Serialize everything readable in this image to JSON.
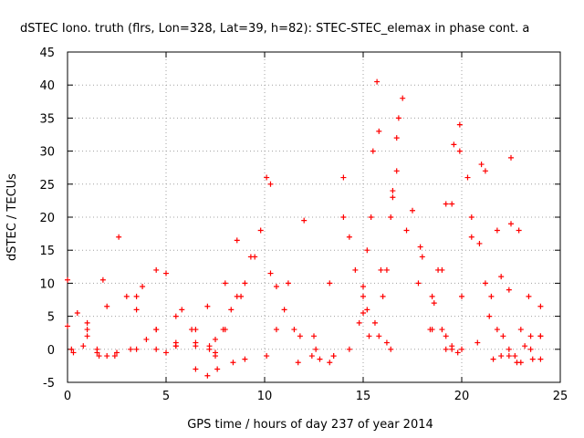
{
  "chart_data": {
    "type": "scatter",
    "title": "dSTEC Iono. truth (flrs, Lon=328, Lat=39, h=82): STEC-STEC_elemax in phase cont. a",
    "xlabel": "GPS time / hours of day 237 of year 2014",
    "ylabel": "dSTEC  / TECUs",
    "xlim": [
      0,
      25
    ],
    "ylim": [
      -5,
      45
    ],
    "xticks": [
      "0",
      "5",
      "10",
      "15",
      "20",
      "25"
    ],
    "yticks": [
      "-5",
      "0",
      "5",
      "10",
      "15",
      "20",
      "25",
      "30",
      "35",
      "40",
      "45"
    ],
    "grid": true,
    "marker": "+",
    "color": "#ff0000",
    "series": [
      {
        "x": [
          0.0,
          0.5,
          1.0,
          1.5,
          2.0
        ],
        "y": [
          10.5,
          5.5,
          2.0,
          0.0,
          -1.0
        ]
      },
      {
        "x": [
          0.0,
          0.8,
          1.6,
          2.4,
          3.2,
          4.0
        ],
        "y": [
          3.5,
          0.5,
          -1.0,
          -1.0,
          0.0,
          1.5
        ]
      },
      {
        "x": [
          0.2,
          1.0,
          2.0,
          3.0,
          3.8
        ],
        "y": [
          0.0,
          3.0,
          6.5,
          8.0,
          9.5
        ]
      },
      {
        "x": [
          0.3,
          1.0,
          1.8
        ],
        "y": [
          -0.5,
          4.0,
          10.5
        ]
      },
      {
        "x": [
          2.6,
          3.5,
          4.5,
          5.5
        ],
        "y": [
          17.0,
          8.0,
          3.0,
          0.5
        ]
      },
      {
        "x": [
          1.5,
          2.5,
          3.5,
          4.5,
          5.0
        ],
        "y": [
          -0.5,
          -0.5,
          0.0,
          0.0,
          -0.5
        ]
      },
      {
        "x": [
          4.5,
          5.5,
          6.5,
          7.5
        ],
        "y": [
          12.0,
          5.0,
          1.0,
          -0.5
        ]
      },
      {
        "x": [
          3.5,
          4.5,
          5.5,
          6.5,
          7.5
        ],
        "y": [
          6.0,
          3.0,
          1.0,
          0.5,
          -1.0
        ]
      },
      {
        "x": [
          5.0,
          5.8,
          6.5,
          7.2
        ],
        "y": [
          11.5,
          6.0,
          3.0,
          0.5
        ]
      },
      {
        "x": [
          5.5,
          6.3,
          7.1,
          8.0,
          8.6
        ],
        "y": [
          0.5,
          3.0,
          6.5,
          10.0,
          16.5
        ]
      },
      {
        "x": [
          6.5,
          7.1,
          7.6,
          8.4,
          9.0
        ],
        "y": [
          -3.0,
          -4.0,
          -3.0,
          -2.0,
          -1.5
        ]
      },
      {
        "x": [
          7.2,
          7.9,
          8.6,
          9.3,
          10.1
        ],
        "y": [
          0.0,
          3.0,
          8.0,
          14.0,
          26.0
        ]
      },
      {
        "x": [
          7.5,
          8.3,
          9.0,
          9.8
        ],
        "y": [
          1.5,
          6.0,
          10.0,
          18.0
        ]
      },
      {
        "x": [
          8.0,
          8.8,
          9.5,
          10.3
        ],
        "y": [
          3.0,
          8.0,
          14.0,
          25.0
        ]
      },
      {
        "x": [
          10.1,
          10.6,
          11.2,
          12.0
        ],
        "y": [
          -1.0,
          3.0,
          10.0,
          19.5
        ]
      },
      {
        "x": [
          10.3,
          11.0,
          11.8,
          12.6,
          13.5
        ],
        "y": [
          11.5,
          6.0,
          2.0,
          0.0,
          -1.0
        ]
      },
      {
        "x": [
          10.6,
          11.5,
          12.4,
          13.3
        ],
        "y": [
          9.5,
          3.0,
          -1.0,
          -2.0
        ]
      },
      {
        "x": [
          11.7,
          12.5,
          13.3,
          14.0
        ],
        "y": [
          -2.0,
          2.0,
          10.0,
          26.0
        ]
      },
      {
        "x": [
          12.8,
          13.5,
          14.3,
          15.0
        ],
        "y": [
          -1.5,
          -1.0,
          0.0,
          5.5
        ]
      },
      {
        "x": [
          14.0,
          14.6,
          15.2,
          15.8,
          16.4
        ],
        "y": [
          20.0,
          12.0,
          6.0,
          2.0,
          0.0
        ]
      },
      {
        "x": [
          14.3,
          15.0,
          15.6,
          16.2
        ],
        "y": [
          17.0,
          9.5,
          4.0,
          1.0
        ]
      },
      {
        "x": [
          14.8,
          15.2,
          15.5,
          15.7
        ],
        "y": [
          4.0,
          15.0,
          30.0,
          40.5
        ]
      },
      {
        "x": [
          15.0,
          15.4,
          15.8
        ],
        "y": [
          8.0,
          20.0,
          33.0
        ]
      },
      {
        "x": [
          15.3,
          15.9,
          16.5
        ],
        "y": [
          2.0,
          12.0,
          23.0
        ]
      },
      {
        "x": [
          16.0,
          16.4,
          16.7,
          17.0
        ],
        "y": [
          8.0,
          20.0,
          32.0,
          38.0
        ]
      },
      {
        "x": [
          16.2,
          16.5,
          16.8
        ],
        "y": [
          12.0,
          24.0,
          35.0
        ]
      },
      {
        "x": [
          16.7,
          17.2,
          17.8,
          18.5,
          19.2
        ],
        "y": [
          27.0,
          18.0,
          10.0,
          3.0,
          0.0
        ]
      },
      {
        "x": [
          17.5,
          18.0,
          18.6,
          19.2,
          19.8
        ],
        "y": [
          21.0,
          14.0,
          7.0,
          2.0,
          -0.5
        ]
      },
      {
        "x": [
          17.9,
          18.5,
          19.0,
          19.5,
          20.0
        ],
        "y": [
          15.5,
          8.0,
          3.0,
          0.5,
          0.0
        ]
      },
      {
        "x": [
          18.4,
          19.0,
          19.5,
          19.9
        ],
        "y": [
          3.0,
          12.0,
          22.0,
          34.0
        ]
      },
      {
        "x": [
          18.8,
          19.2,
          19.6
        ],
        "y": [
          12.0,
          22.0,
          31.0
        ]
      },
      {
        "x": [
          19.5,
          20.0,
          20.5,
          21.0
        ],
        "y": [
          0.0,
          8.0,
          17.0,
          28.0
        ]
      },
      {
        "x": [
          19.9,
          20.5,
          21.2,
          21.8,
          22.4
        ],
        "y": [
          30.0,
          20.0,
          10.0,
          3.0,
          0.0
        ]
      },
      {
        "x": [
          20.3,
          20.9,
          21.5,
          22.1,
          22.7
        ],
        "y": [
          26.0,
          16.0,
          8.0,
          2.0,
          -1.0
        ]
      },
      {
        "x": [
          20.8,
          21.4,
          22.0,
          22.5
        ],
        "y": [
          1.0,
          5.0,
          11.0,
          19.0
        ]
      },
      {
        "x": [
          21.2,
          21.8,
          22.4,
          23.0,
          23.5
        ],
        "y": [
          27.0,
          18.0,
          9.0,
          3.0,
          0.0
        ]
      },
      {
        "x": [
          22.5,
          22.9,
          23.4,
          24.0
        ],
        "y": [
          29.0,
          18.0,
          8.0,
          2.0
        ]
      },
      {
        "x": [
          22.0,
          22.8,
          23.6,
          24.0
        ],
        "y": [
          -1.0,
          -2.0,
          -1.5,
          -1.5
        ]
      },
      {
        "x": [
          23.0,
          23.5,
          24.0
        ],
        "y": [
          -2.0,
          2.0,
          6.5
        ]
      },
      {
        "x": [
          21.6,
          22.4,
          23.2,
          24.0
        ],
        "y": [
          -1.5,
          -1.0,
          0.5,
          2.0
        ]
      }
    ]
  }
}
